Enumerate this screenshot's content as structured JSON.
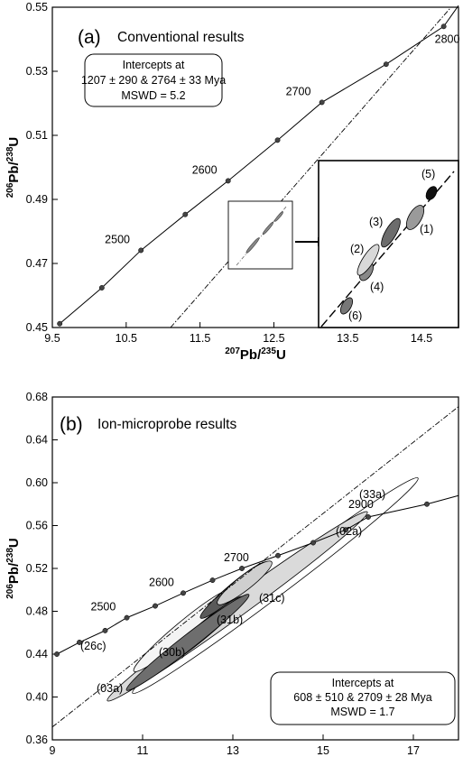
{
  "chart_data": [
    {
      "type": "scatter",
      "panel": "(a)",
      "title": "Conventional results",
      "xlabel": {
        "a": "207",
        "b": "Pb/",
        "c": "235",
        "d": "U"
      },
      "ylabel": {
        "a": "206",
        "b": "Pb/",
        "c": "238",
        "d": "U"
      },
      "xlim": [
        9.5,
        15.0
      ],
      "ylim": [
        0.45,
        0.55
      ],
      "x_ticks": [
        "9.5",
        "10.5",
        "11.5",
        "12.5",
        "13.5",
        "14.5"
      ],
      "x_tick_values": [
        9.5,
        10.5,
        11.5,
        12.5,
        13.5,
        14.5
      ],
      "y_ticks": [
        "0.45",
        "0.47",
        "0.49",
        "0.51",
        "0.53",
        "0.55"
      ],
      "y_tick_values": [
        0.45,
        0.47,
        0.49,
        0.51,
        0.53,
        0.55
      ],
      "intercept_box": [
        "Intercepts at",
        "1207 ± 290 & 2764 ± 33 Mya",
        "MSWD = 5.2"
      ],
      "concordia_ages": [
        {
          "label": "2500",
          "x": 10.7,
          "y": 0.4741
        },
        {
          "label": "2600",
          "x": 11.88,
          "y": 0.4958
        },
        {
          "label": "2700",
          "x": 13.15,
          "y": 0.5203
        },
        {
          "label": "2800",
          "x": 14.8,
          "y": 0.544
        }
      ],
      "concordia_points": [
        {
          "x": 9.6,
          "y": 0.4512
        },
        {
          "x": 10.17,
          "y": 0.4624
        },
        {
          "x": 10.7,
          "y": 0.4741
        },
        {
          "x": 11.3,
          "y": 0.4853
        },
        {
          "x": 11.88,
          "y": 0.4958
        },
        {
          "x": 12.55,
          "y": 0.5085
        },
        {
          "x": 13.15,
          "y": 0.5203
        },
        {
          "x": 14.02,
          "y": 0.5322
        },
        {
          "x": 14.8,
          "y": 0.544
        }
      ],
      "discordia": [
        {
          "x": 11.1,
          "y": 0.45
        },
        {
          "x": 14.9,
          "y": 0.55
        }
      ],
      "inset_labels": [
        "(1)",
        "(2)",
        "(3)",
        "(4)",
        "(5)",
        "(6)"
      ]
    },
    {
      "type": "scatter",
      "panel": "(b)",
      "title": "Ion-microprobe results",
      "xlabel": {
        "a": "207",
        "b": "Pb/",
        "c": "235",
        "d": "U"
      },
      "ylabel": {
        "a": "206",
        "b": "Pb/",
        "c": "238",
        "d": "U"
      },
      "xlim": [
        9,
        18
      ],
      "ylim": [
        0.36,
        0.68
      ],
      "x_ticks": [
        "9",
        "11",
        "13",
        "15",
        "17"
      ],
      "x_tick_values": [
        9,
        11,
        13,
        15,
        17
      ],
      "y_ticks": [
        "0.36",
        "0.40",
        "0.44",
        "0.48",
        "0.52",
        "0.56",
        "0.60",
        "0.64",
        "0.68"
      ],
      "y_tick_values": [
        0.36,
        0.4,
        0.44,
        0.48,
        0.52,
        0.56,
        0.6,
        0.64,
        0.68
      ],
      "intercept_box": [
        "Intercepts at",
        "608 ± 510 & 2709 ± 28 Mya",
        "MSWD = 1.7"
      ],
      "concordia_ages": [
        {
          "label": "2500",
          "x": 10.65,
          "y": 0.474
        },
        {
          "label": "2600",
          "x": 11.9,
          "y": 0.497
        },
        {
          "label": "2700",
          "x": 13.2,
          "y": 0.52
        },
        {
          "label": "2900",
          "x": 16.0,
          "y": 0.568
        }
      ],
      "concordia_points": [
        {
          "x": 9.1,
          "y": 0.44
        },
        {
          "x": 9.6,
          "y": 0.451
        },
        {
          "x": 10.17,
          "y": 0.462
        },
        {
          "x": 10.65,
          "y": 0.474
        },
        {
          "x": 11.28,
          "y": 0.485
        },
        {
          "x": 11.9,
          "y": 0.497
        },
        {
          "x": 12.55,
          "y": 0.509
        },
        {
          "x": 13.2,
          "y": 0.52
        },
        {
          "x": 14.0,
          "y": 0.532
        },
        {
          "x": 14.78,
          "y": 0.544
        },
        {
          "x": 15.5,
          "y": 0.556
        },
        {
          "x": 16.0,
          "y": 0.568
        },
        {
          "x": 17.3,
          "y": 0.58
        }
      ],
      "discordia": [
        {
          "x": 9,
          "y": 0.372
        },
        {
          "x": 18,
          "y": 0.671
        }
      ],
      "ellipse_labels": [
        "(33a)",
        "(02a)",
        "(31c)",
        "(31b)",
        "(30b)",
        "(26c)",
        "(03a)"
      ]
    }
  ]
}
